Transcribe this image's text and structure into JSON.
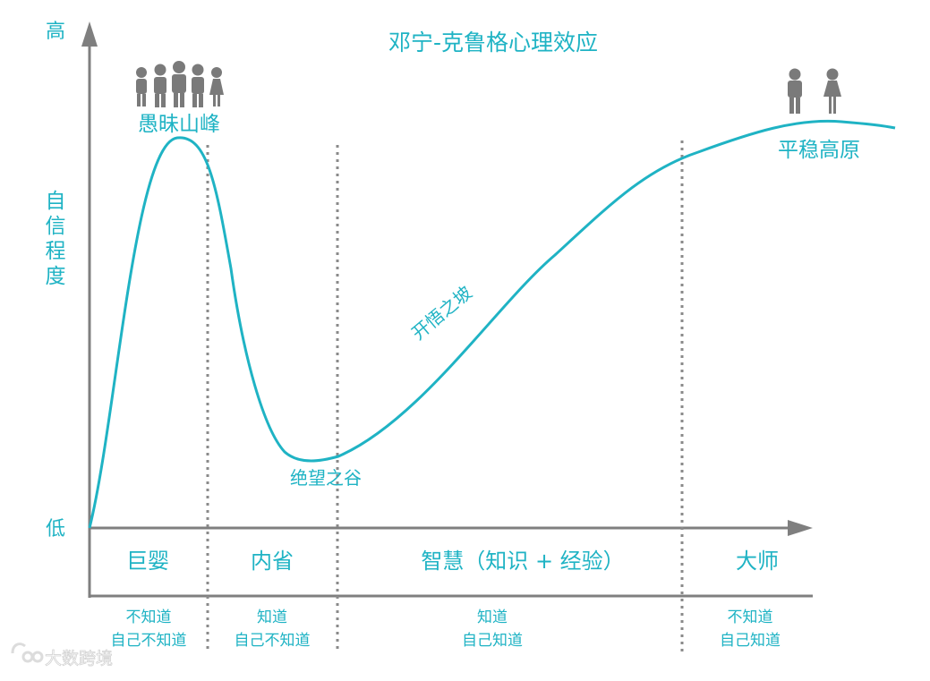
{
  "title": "邓宁-克鲁格心理效应",
  "y_axis": {
    "high_label": "高",
    "low_label": "低",
    "label_chars": [
      "自",
      "信",
      "程",
      "度"
    ]
  },
  "curve_labels": {
    "peak": "愚昧山峰",
    "valley": "绝望之谷",
    "slope": "开悟之坡",
    "plateau": "平稳高原"
  },
  "stages": [
    {
      "name": "巨婴",
      "knowledge_line1": "不知道",
      "knowledge_line2": "自己不知道"
    },
    {
      "name": "内省",
      "knowledge_line1": "知道",
      "knowledge_line2": "自己不知道"
    },
    {
      "name": "智慧（知识 + 经验）",
      "knowledge_line1": "知道",
      "knowledge_line2": "自己知道"
    },
    {
      "name": "大师",
      "knowledge_line1": "不知道",
      "knowledge_line2": "自己知道"
    }
  ],
  "watermark": "大数跨境",
  "colors": {
    "accent": "#1fb3c4",
    "axis": "#7f7f7f",
    "figure": "#7a7a7a",
    "divider": "#8a8a8a"
  },
  "icons": {
    "crowd": "crowd-figures-icon",
    "couple": "couple-figures-icon",
    "watermark_logo": "watermark-logo-icon"
  }
}
